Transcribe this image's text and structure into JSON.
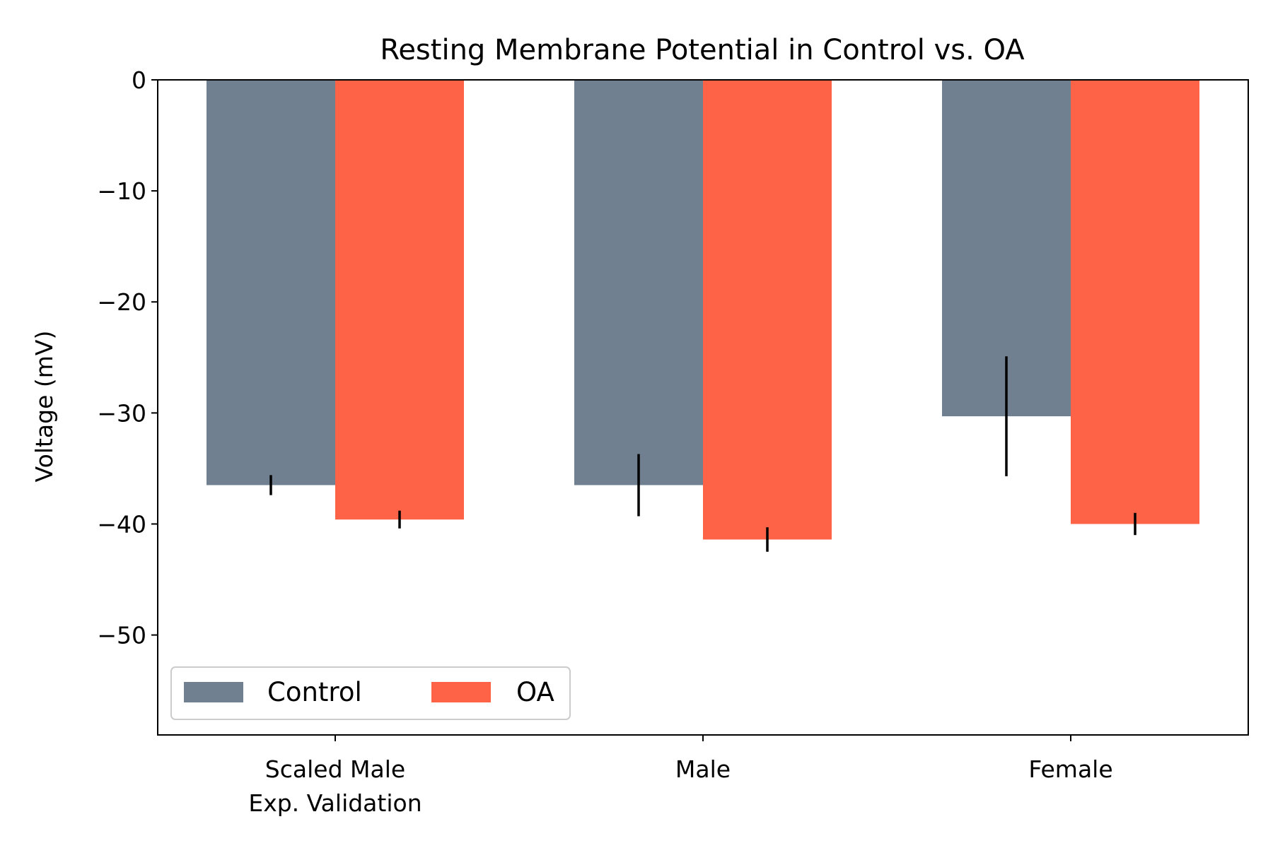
{
  "chart_data": {
    "type": "bar",
    "title": "Resting Membrane Potential in Control vs. OA",
    "xlabel": "",
    "ylabel": "Voltage (mV)",
    "ylim": [
      -59,
      0
    ],
    "yticks": [
      0,
      -10,
      -20,
      -30,
      -40,
      -50
    ],
    "ytick_labels": [
      "0",
      "−10",
      "−20",
      "−30",
      "−40",
      "−50"
    ],
    "categories": [
      [
        "Scaled Male",
        "Exp. Validation"
      ],
      [
        "Male"
      ],
      [
        "Female"
      ]
    ],
    "series": [
      {
        "name": "Control",
        "color": "#708090",
        "values": [
          -36.5,
          -36.5,
          -30.3
        ],
        "errors": [
          0.9,
          2.8,
          5.4
        ]
      },
      {
        "name": "OA",
        "color": "#FF6347",
        "values": [
          -39.6,
          -41.4,
          -40.0
        ],
        "errors": [
          0.8,
          1.1,
          1.0
        ]
      }
    ],
    "grid": false,
    "legend": {
      "position": "lower-left",
      "columns": 2
    }
  }
}
